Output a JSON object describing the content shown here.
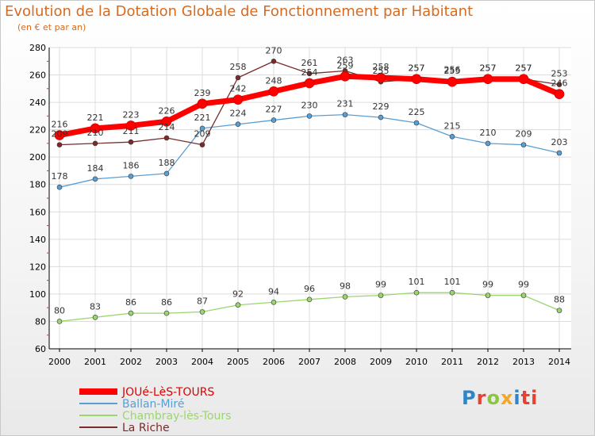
{
  "chart_data": {
    "type": "line",
    "title": "Evolution de la Dotation Globale de Fonctionnement par Habitant",
    "subtitle": "(en € et par an)",
    "x": [
      "2000",
      "2001",
      "2002",
      "2003",
      "2004",
      "2005",
      "2006",
      "2007",
      "2008",
      "2009",
      "2010",
      "2011",
      "2012",
      "2013",
      "2014"
    ],
    "ylim": [
      60,
      280
    ],
    "yticks": [
      60,
      80,
      100,
      120,
      140,
      160,
      180,
      200,
      220,
      240,
      260,
      280
    ],
    "grid": true,
    "legend_position": "bottom-left",
    "series": [
      {
        "name": "JOUé-LèS-TOURS",
        "color": "#ff0000",
        "values": [
          216,
          221,
          223,
          226,
          239,
          242,
          248,
          254,
          259,
          258,
          257,
          255,
          257,
          257,
          246
        ],
        "labels": [
          "216",
          "221",
          "223",
          "226",
          "239",
          "242",
          "248",
          "254",
          "259",
          "258",
          "257",
          "255",
          "257",
          "257",
          "246"
        ]
      },
      {
        "name": "Ballan-Miré",
        "color": "#5a9fd4",
        "values": [
          178,
          184,
          186,
          188,
          221,
          224,
          227,
          230,
          231,
          229,
          225,
          215,
          210,
          209,
          203
        ],
        "labels": [
          "178",
          "184",
          "186",
          "188",
          "221",
          "224",
          "227",
          "230",
          "231",
          "229",
          "225",
          "215",
          "210",
          "209",
          "203"
        ]
      },
      {
        "name": "Chambray-lès-Tours",
        "color": "#9ad66c",
        "values": [
          80,
          83,
          86,
          86,
          87,
          92,
          94,
          96,
          98,
          99,
          101,
          101,
          99,
          99,
          88
        ],
        "labels": [
          "80",
          "83",
          "86",
          "86",
          "87",
          "92",
          "94",
          "96",
          "98",
          "99",
          "101",
          "101",
          "99",
          "99",
          "88"
        ]
      },
      {
        "name": "La Riche",
        "color": "#7a2b2b",
        "values": [
          209,
          210,
          211,
          214,
          209,
          258,
          270,
          261,
          263,
          255,
          257,
          256,
          257,
          257,
          253
        ],
        "labels": [
          "209",
          "210",
          "211",
          "214",
          "209",
          "258",
          "270",
          "261",
          "263",
          "255",
          "257",
          "256",
          "257",
          "257",
          "253"
        ]
      }
    ]
  },
  "logo": [
    "P",
    "r",
    "o",
    "x",
    "i",
    "ti"
  ]
}
